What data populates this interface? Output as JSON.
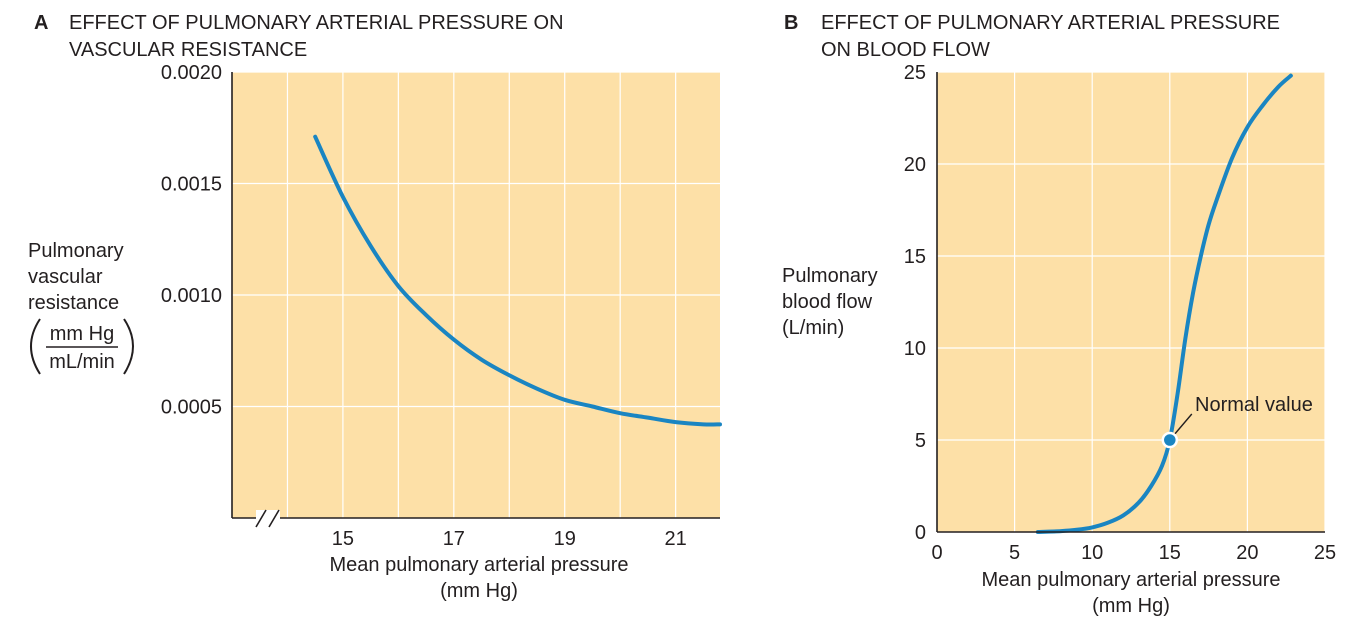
{
  "chart_data": [
    {
      "panel": "A",
      "type": "line",
      "title_lines": [
        "EFFECT OF PULMONARY ARTERIAL PRESSURE ON",
        "VASCULAR RESISTANCE"
      ],
      "xlabel_lines": [
        "Mean pulmonary arterial pressure",
        "(mm Hg)"
      ],
      "ylabel_lines": [
        "Pulmonary",
        "vascular",
        "resistance"
      ],
      "yunit_numerator": "mm Hg",
      "yunit_denominator": "mL/min",
      "xlim": [
        13.0,
        21.8
      ],
      "ylim": [
        0,
        0.002
      ],
      "xticks": [
        15,
        17,
        19,
        21
      ],
      "xtick_labels": [
        "15",
        "17",
        "19",
        "21"
      ],
      "yticks": [
        0.0005,
        0.001,
        0.0015,
        0.002
      ],
      "ytick_labels": [
        "0.0005",
        "0.0010",
        "0.0015",
        "0.0020"
      ],
      "x_axis_break": true,
      "grid": true,
      "line_color": "#1a85c2",
      "background_color": "#fde0a7",
      "series": [
        {
          "x": [
            14.5,
            15,
            15.5,
            16,
            16.5,
            17,
            17.5,
            18,
            18.5,
            19,
            19.5,
            20,
            20.5,
            21,
            21.5,
            21.8
          ],
          "y": [
            0.00171,
            0.00144,
            0.00122,
            0.00104,
            0.00091,
            0.0008,
            0.00071,
            0.00064,
            0.00058,
            0.00053,
            0.0005,
            0.00047,
            0.00045,
            0.00043,
            0.00042,
            0.00042
          ]
        }
      ]
    },
    {
      "panel": "B",
      "type": "line",
      "title_lines": [
        "EFFECT OF PULMONARY ARTERIAL PRESSURE",
        "ON BLOOD FLOW"
      ],
      "xlabel_lines": [
        "Mean pulmonary arterial pressure",
        "(mm Hg)"
      ],
      "ylabel_lines": [
        "Pulmonary",
        "blood flow",
        "(L/min)"
      ],
      "xlim": [
        0,
        25
      ],
      "ylim": [
        0,
        25
      ],
      "xticks": [
        0,
        5,
        10,
        15,
        20,
        25
      ],
      "xtick_labels": [
        "0",
        "5",
        "10",
        "15",
        "20",
        "25"
      ],
      "yticks": [
        0,
        5,
        10,
        15,
        20,
        25
      ],
      "ytick_labels": [
        "0",
        "5",
        "10",
        "15",
        "20",
        "25"
      ],
      "grid": true,
      "line_color": "#1a85c2",
      "background_color": "#fde0a7",
      "series": [
        {
          "x": [
            6.5,
            8,
            9,
            10,
            11,
            12,
            13,
            13.8,
            14.5,
            15,
            15.5,
            16,
            16.5,
            17,
            17.5,
            18,
            19,
            20,
            21,
            22,
            22.8
          ],
          "y": [
            0,
            0.05,
            0.12,
            0.25,
            0.5,
            0.9,
            1.6,
            2.5,
            3.6,
            5.0,
            7.5,
            10.5,
            13.0,
            15.0,
            16.7,
            18.0,
            20.3,
            22.0,
            23.2,
            24.2,
            24.8
          ]
        }
      ],
      "annotation": {
        "label": "Normal value",
        "x": 15,
        "y": 5
      }
    }
  ]
}
